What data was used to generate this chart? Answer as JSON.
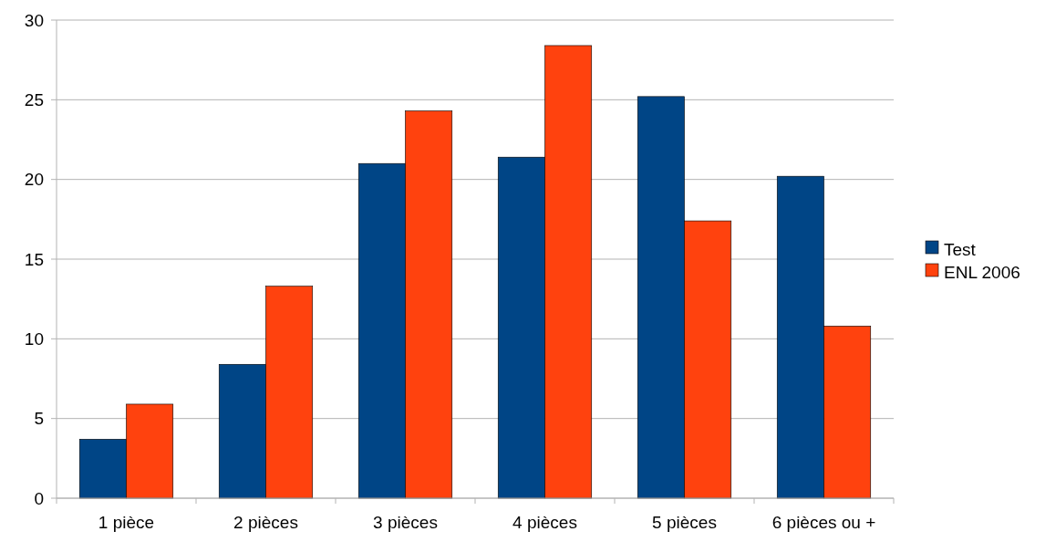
{
  "chart_data": {
    "type": "bar",
    "categories": [
      "1 pièce",
      "2 pièces",
      "3 pièces",
      "4 pièces",
      "5 pièces",
      "6 pièces ou +"
    ],
    "series": [
      {
        "name": "Test",
        "color": "#004586",
        "values": [
          3.7,
          8.4,
          21.0,
          21.4,
          25.2,
          20.2
        ]
      },
      {
        "name": "ENL 2006",
        "color": "#ff420e",
        "values": [
          5.9,
          13.3,
          24.3,
          28.4,
          17.4,
          10.8
        ]
      }
    ],
    "ylim": [
      0,
      30
    ],
    "yticks": [
      0,
      5,
      10,
      15,
      20,
      25,
      30
    ],
    "grid": "y",
    "legend": "right"
  }
}
